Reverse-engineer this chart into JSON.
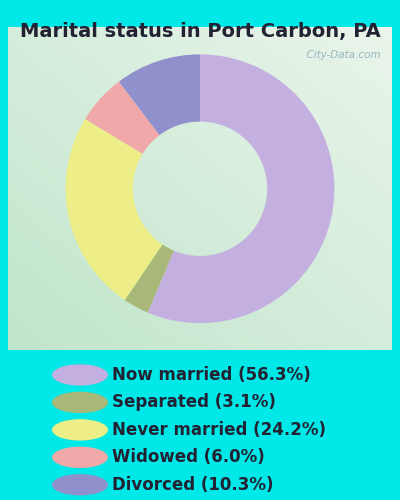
{
  "title": "Marital status in Port Carbon, PA",
  "slices": [
    {
      "label": "Now married (56.3%)",
      "value": 56.3,
      "color": "#c4b0e0"
    },
    {
      "label": "Separated (3.1%)",
      "value": 3.1,
      "color": "#a8b878"
    },
    {
      "label": "Never married (24.2%)",
      "value": 24.2,
      "color": "#eeee88"
    },
    {
      "label": "Widowed (6.0%)",
      "value": 6.0,
      "color": "#f0a8a8"
    },
    {
      "label": "Divorced (10.3%)",
      "value": 10.3,
      "color": "#9090cc"
    }
  ],
  "bg_outer": "#00e8e8",
  "title_fontsize": 14,
  "legend_fontsize": 12,
  "watermark": "City-Data.com"
}
